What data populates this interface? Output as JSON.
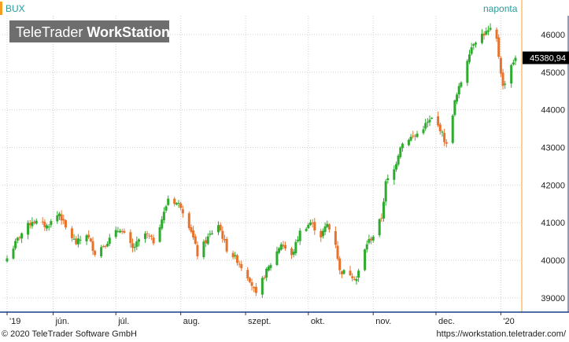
{
  "instrument": "BUX",
  "period": "naponta",
  "brand": {
    "normal": "TeleTrader ",
    "bold": "WorkStation"
  },
  "last_price_label": "45380,94",
  "footer": {
    "copyright": "© 2020 TeleTrader Software GmbH",
    "url": "https://workstation.teletrader.com/"
  },
  "colors": {
    "up": "#2eaa2e",
    "down": "#e8722a",
    "price_box": "#000000",
    "marker": "#f5a020",
    "title_text": "#2a9a9a"
  },
  "chart_data": {
    "type": "candlestick",
    "title": "BUX",
    "yticks": [
      39000,
      40000,
      41000,
      42000,
      43000,
      44000,
      45000,
      46000
    ],
    "ytick_labels": [
      "39000",
      "40000",
      "41000",
      "42000",
      "43000",
      "44000",
      "45000",
      "46000"
    ],
    "ylim": [
      38620,
      46500
    ],
    "x_start": "2019-05-10",
    "x_end": "2020-01-08",
    "xticks": [
      {
        "label": "'19",
        "date": "2019-05-10"
      },
      {
        "label": "jún.",
        "date": "2019-06-01"
      },
      {
        "label": "júl.",
        "date": "2019-07-01"
      },
      {
        "label": "aug.",
        "date": "2019-08-01"
      },
      {
        "label": "szept.",
        "date": "2019-09-01"
      },
      {
        "label": "okt.",
        "date": "2019-10-01"
      },
      {
        "label": "nov.",
        "date": "2019-11-01"
      },
      {
        "label": "dec.",
        "date": "2019-12-01"
      },
      {
        "label": "'20",
        "date": "2020-01-01"
      }
    ],
    "grid": true,
    "last_value": 45380.94,
    "anchor_points": [
      [
        "2019-05-10",
        40050
      ],
      [
        "2019-05-16",
        40650
      ],
      [
        "2019-05-22",
        41050
      ],
      [
        "2019-05-29",
        40900
      ],
      [
        "2019-06-04",
        41250
      ],
      [
        "2019-06-07",
        40850
      ],
      [
        "2019-06-12",
        40450
      ],
      [
        "2019-06-17",
        40700
      ],
      [
        "2019-06-21",
        40200
      ],
      [
        "2019-06-27",
        40500
      ],
      [
        "2019-07-03",
        40850
      ],
      [
        "2019-07-09",
        40300
      ],
      [
        "2019-07-15",
        40700
      ],
      [
        "2019-07-19",
        40500
      ],
      [
        "2019-07-24",
        41250
      ],
      [
        "2019-07-26",
        41650
      ],
      [
        "2019-08-01",
        41450
      ],
      [
        "2019-08-06",
        40800
      ],
      [
        "2019-08-09",
        40150
      ],
      [
        "2019-08-14",
        40600
      ],
      [
        "2019-08-19",
        40950
      ],
      [
        "2019-08-23",
        40300
      ],
      [
        "2019-08-28",
        40000
      ],
      [
        "2019-09-03",
        39500
      ],
      [
        "2019-09-06",
        39050
      ],
      [
        "2019-09-10",
        39600
      ],
      [
        "2019-09-13",
        39900
      ],
      [
        "2019-09-18",
        40450
      ],
      [
        "2019-09-23",
        40100
      ],
      [
        "2019-09-27",
        40750
      ],
      [
        "2019-10-02",
        41000
      ],
      [
        "2019-10-07",
        40650
      ],
      [
        "2019-10-10",
        40950
      ],
      [
        "2019-10-14",
        40450
      ],
      [
        "2019-10-16",
        39700
      ],
      [
        "2019-10-21",
        39650
      ],
      [
        "2019-10-24",
        39500
      ],
      [
        "2019-10-29",
        40450
      ],
      [
        "2019-11-01",
        40650
      ],
      [
        "2019-11-05",
        41150
      ],
      [
        "2019-11-07",
        42050
      ],
      [
        "2019-11-11",
        42400
      ],
      [
        "2019-11-14",
        43050
      ],
      [
        "2019-11-18",
        43250
      ],
      [
        "2019-11-21",
        43300
      ],
      [
        "2019-11-26",
        43600
      ],
      [
        "2019-11-29",
        43750
      ],
      [
        "2019-12-03",
        43500
      ],
      [
        "2019-12-06",
        43050
      ],
      [
        "2019-12-10",
        44200
      ],
      [
        "2019-12-13",
        44750
      ],
      [
        "2019-12-17",
        45550
      ],
      [
        "2019-12-19",
        45800
      ],
      [
        "2019-12-23",
        46000
      ],
      [
        "2019-12-27",
        46100
      ],
      [
        "2019-12-30",
        45850
      ],
      [
        "2020-01-02",
        44600
      ],
      [
        "2020-01-06",
        45200
      ],
      [
        "2020-01-08",
        45380.94
      ]
    ]
  }
}
